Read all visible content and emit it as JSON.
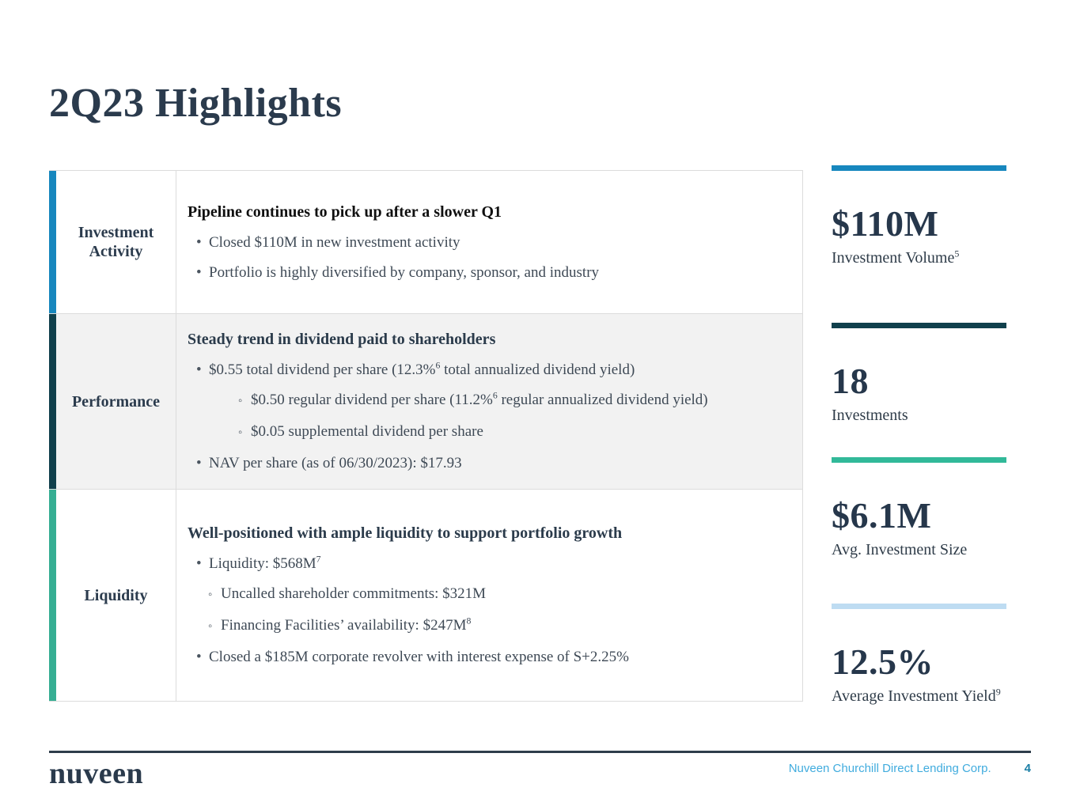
{
  "title": "2Q23 Highlights",
  "colors": {
    "accent_blue": "#1787BE",
    "accent_dark_teal": "#10404C",
    "accent_teal": "#36AE93",
    "accent_teal_bright": "#31B999",
    "accent_light_blue": "#BEDCF2",
    "row_alt_bg": "#F2F2F2",
    "title_navy": "#2B3B4D"
  },
  "table": {
    "rows": [
      {
        "id": "investment-activity",
        "label": "Investment Activity",
        "accent": "#1787BE",
        "bg": "#FFFFFF",
        "heading": "Pipeline continues to pick up after a slower Q1",
        "heading_color": "#101010",
        "items": [
          {
            "level": 1,
            "segments": [
              {
                "t": "Closed $110M in new investment activity"
              }
            ]
          },
          {
            "level": 1,
            "segments": [
              {
                "t": "Portfolio is highly diversified by company, sponsor, and industry"
              }
            ]
          }
        ]
      },
      {
        "id": "performance",
        "label": "Performance",
        "accent": "#10404C",
        "bg": "#F2F2F2",
        "heading": "Steady trend in dividend paid to shareholders",
        "heading_color": "#2B3B4B",
        "items": [
          {
            "level": 1,
            "segments": [
              {
                "t": "$0.55 total dividend per share (12.3%"
              },
              {
                "sup": "6"
              },
              {
                "t": " total annualized dividend yield)"
              }
            ]
          },
          {
            "level": 2,
            "segments": [
              {
                "t": "$0.50 regular dividend per share (11.2%"
              },
              {
                "sup": "6"
              },
              {
                "t": " regular annualized dividend yield)"
              }
            ]
          },
          {
            "level": 2,
            "segments": [
              {
                "t": "$0.05 supplemental dividend per share"
              }
            ]
          },
          {
            "level": 1,
            "segments": [
              {
                "t": "NAV per share (as of 06/30/2023): $17.93"
              }
            ]
          }
        ]
      },
      {
        "id": "liquidity",
        "label": "Liquidity",
        "accent": "#36AE93",
        "bg": "#FFFFFF",
        "heading": "Well-positioned with ample liquidity to support portfolio growth",
        "heading_color": "#2B3B4B",
        "items": [
          {
            "level": 1,
            "segments": [
              {
                "t": "Liquidity: $568M"
              },
              {
                "sup": "7"
              }
            ]
          },
          {
            "level": 2,
            "segments": [
              {
                "t": "Uncalled shareholder commitments: $321M"
              }
            ]
          },
          {
            "level": 2,
            "segments": [
              {
                "t": "Financing Facilities’ availability: $247M"
              },
              {
                "sup": "8"
              }
            ]
          },
          {
            "level": 1,
            "segments": [
              {
                "t": "Closed a $185M corporate revolver with interest expense of S+2.25%"
              }
            ]
          }
        ]
      }
    ]
  },
  "stats": [
    {
      "id": "investment-volume",
      "bar_color": "#1787BE",
      "value": "$110M",
      "label": "Investment Volume",
      "label_sup": "5"
    },
    {
      "id": "investments",
      "bar_color": "#10404C",
      "value": "18",
      "label": "Investments",
      "label_sup": ""
    },
    {
      "id": "avg-investment-size",
      "bar_color": "#31B999",
      "value": "$6.1M",
      "label": "Avg. Investment Size",
      "label_sup": ""
    },
    {
      "id": "average-investment-yield",
      "bar_color": "#BEDCF2",
      "value": "12.5%",
      "label": "Average Investment Yield",
      "label_sup": "9"
    }
  ],
  "footer": {
    "brand": "nuveen",
    "company": "Nuveen Churchill Direct Lending Corp.",
    "page_number": "4"
  }
}
